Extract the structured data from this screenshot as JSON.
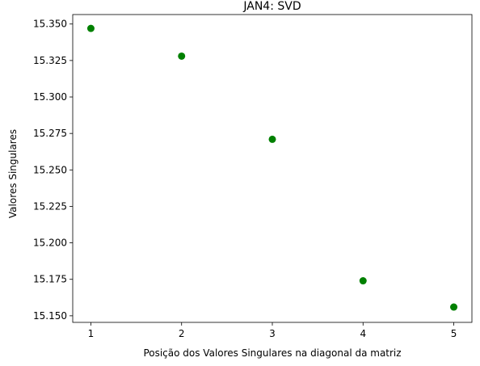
{
  "chart_data": {
    "type": "scatter",
    "title": "JAN4: SVD",
    "xlabel": "Posição dos Valores Singulares na diagonal da matriz",
    "ylabel": "Valores Singulares",
    "xlim": [
      0.8,
      5.2
    ],
    "ylim": [
      15.1455,
      15.3565
    ],
    "xticks": [
      1,
      2,
      3,
      4,
      5
    ],
    "xtick_labels": [
      "1",
      "2",
      "3",
      "4",
      "5"
    ],
    "yticks": [
      15.15,
      15.175,
      15.2,
      15.225,
      15.25,
      15.275,
      15.3,
      15.325,
      15.35
    ],
    "ytick_labels": [
      "15.150",
      "15.175",
      "15.200",
      "15.225",
      "15.250",
      "15.275",
      "15.300",
      "15.325",
      "15.350"
    ],
    "grid": false,
    "legend": null,
    "series": [
      {
        "color": "#008000",
        "x": [
          1,
          2,
          3,
          4,
          5
        ],
        "y": [
          15.347,
          15.328,
          15.271,
          15.174,
          15.156
        ]
      }
    ]
  }
}
